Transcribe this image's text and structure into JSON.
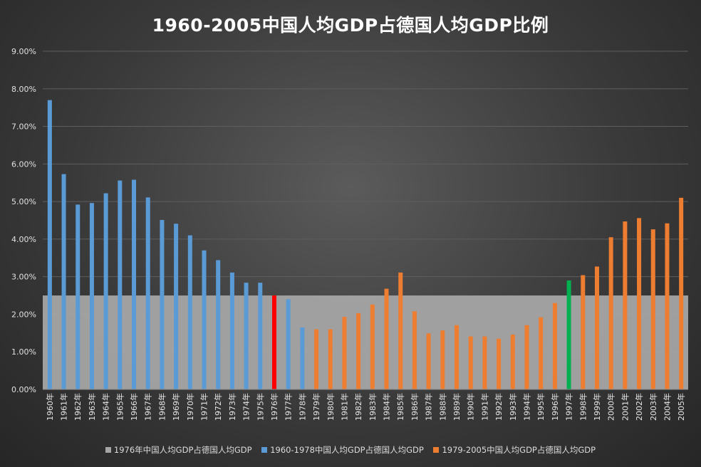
{
  "chart_data": {
    "type": "bar",
    "title": "1960-2005中国人均GDP占德国人均GDP比例",
    "xlabel": "",
    "ylabel": "",
    "ylim": [
      0,
      0.09
    ],
    "y_ticks": [
      "0.00%",
      "1.00%",
      "2.00%",
      "3.00%",
      "4.00%",
      "5.00%",
      "6.00%",
      "7.00%",
      "8.00%",
      "9.00%"
    ],
    "grid": true,
    "legend_position": "bottom",
    "categories": [
      "1960年",
      "1961年",
      "1962年",
      "1963年",
      "1964年",
      "1965年",
      "1966年",
      "1967年",
      "1968年",
      "1969年",
      "1970年",
      "1971年",
      "1972年",
      "1973年",
      "1974年",
      "1975年",
      "1976年",
      "1977年",
      "1978年",
      "1979年",
      "1980年",
      "1981年",
      "1982年",
      "1983年",
      "1984年",
      "1985年",
      "1986年",
      "1987年",
      "1988年",
      "1989年",
      "1990年",
      "1991年",
      "1992年",
      "1993年",
      "1994年",
      "1995年",
      "1996年",
      "1997年",
      "1998年",
      "1999年",
      "2000年",
      "2001年",
      "2002年",
      "2003年",
      "2004年",
      "2005年"
    ],
    "values": [
      0.077,
      0.0573,
      0.0492,
      0.0496,
      0.0522,
      0.0556,
      0.0558,
      0.0511,
      0.0451,
      0.0441,
      0.041,
      0.037,
      0.0344,
      0.0311,
      0.0284,
      0.0284,
      0.025,
      0.024,
      0.0165,
      0.016,
      0.016,
      0.0193,
      0.0203,
      0.0226,
      0.0268,
      0.0311,
      0.0208,
      0.0149,
      0.0157,
      0.0171,
      0.0141,
      0.0141,
      0.0135,
      0.0146,
      0.0171,
      0.0192,
      0.023,
      0.029,
      0.0304,
      0.0327,
      0.0405,
      0.0447,
      0.0456,
      0.0426,
      0.0442,
      0.051
    ],
    "bar_colors": [
      "#5b9bd5",
      "#5b9bd5",
      "#5b9bd5",
      "#5b9bd5",
      "#5b9bd5",
      "#5b9bd5",
      "#5b9bd5",
      "#5b9bd5",
      "#5b9bd5",
      "#5b9bd5",
      "#5b9bd5",
      "#5b9bd5",
      "#5b9bd5",
      "#5b9bd5",
      "#5b9bd5",
      "#5b9bd5",
      "#ff0000",
      "#5b9bd5",
      "#5b9bd5",
      "#ed7d31",
      "#ed7d31",
      "#ed7d31",
      "#ed7d31",
      "#ed7d31",
      "#ed7d31",
      "#ed7d31",
      "#ed7d31",
      "#ed7d31",
      "#ed7d31",
      "#ed7d31",
      "#ed7d31",
      "#ed7d31",
      "#ed7d31",
      "#ed7d31",
      "#ed7d31",
      "#ed7d31",
      "#ed7d31",
      "#00b050",
      "#ed7d31",
      "#ed7d31",
      "#ed7d31",
      "#ed7d31",
      "#ed7d31",
      "#ed7d31",
      "#ed7d31",
      "#ed7d31"
    ],
    "reference_area": {
      "value": 0.025,
      "color": "#a5a5a5"
    },
    "series": [
      {
        "name": "1976年中国人均GDP占德国人均GDP",
        "color": "#a5a5a5"
      },
      {
        "name": "1960-1978中国人均GDP占德国人均GDP",
        "color": "#5b9bd5"
      },
      {
        "name": "1979-2005中国人均GDP占德国人均GDP",
        "color": "#ed7d31"
      }
    ]
  }
}
